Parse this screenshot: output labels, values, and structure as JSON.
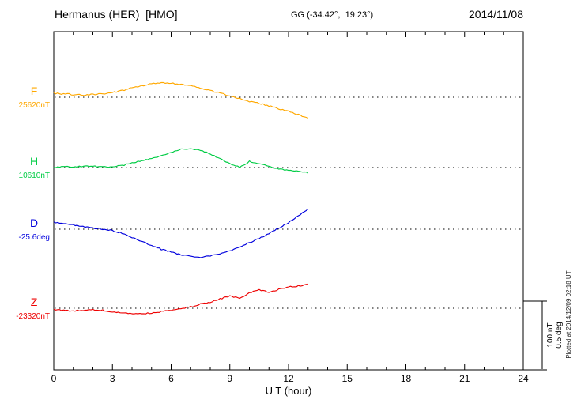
{
  "header": {
    "station": "Hermanus (HER)  [HMO]",
    "coords": "GG (-34.42°,  19.23°)",
    "date": "2014/11/08"
  },
  "scale_bar": {
    "line1": "100 nT",
    "line2": "0.5 deg"
  },
  "plotted_at": "Plotted at 2014/12/09 02:18 UT",
  "chart_data": {
    "type": "line",
    "title": "Hermanus (HER) [HMO] magnetogram 2014/11/08",
    "xlabel": "U T (hour)",
    "ylabel": "",
    "x_range": [
      0,
      24
    ],
    "x_ticks": [
      0,
      3,
      6,
      9,
      12,
      15,
      18,
      21,
      24
    ],
    "x_minor_step": 1,
    "grid": "dotted-baselines",
    "legend_position": "left-of-axis",
    "scale": {
      "nT_per_division": 100,
      "deg_per_division": 0.5
    },
    "x": [
      0,
      0.5,
      1,
      1.5,
      2,
      2.5,
      3,
      3.5,
      4,
      4.5,
      5,
      5.5,
      6,
      6.5,
      7,
      7.5,
      8,
      8.5,
      9,
      9.5,
      10,
      10.5,
      11,
      11.5,
      12,
      12.5,
      13
    ],
    "series": [
      {
        "name": "F",
        "unit": "nT",
        "color": "#FFA800",
        "baseline_label": "25620nT",
        "baseline_value": 25620,
        "values": [
          25626,
          25625,
          25624,
          25623,
          25624,
          25625,
          25627,
          25630,
          25634,
          25637,
          25640,
          25641,
          25641,
          25639,
          25637,
          25634,
          25630,
          25626,
          25622,
          25618,
          25614,
          25611,
          25607,
          25603,
          25599,
          25594,
          25589
        ]
      },
      {
        "name": "H",
        "unit": "nT",
        "color": "#00CC44",
        "baseline_label": "10610nT",
        "baseline_value": 10610,
        "values": [
          10610,
          10611,
          10611,
          10612,
          10612,
          10611,
          10611,
          10613,
          10617,
          10620,
          10624,
          10628,
          10633,
          10637,
          10638,
          10636,
          10630,
          10623,
          10616,
          10611,
          10619,
          10616,
          10612,
          10608,
          10606,
          10604,
          10602
        ]
      },
      {
        "name": "D",
        "unit": "deg",
        "color": "#0000DD",
        "baseline_label": "-25.6deg",
        "baseline_value": -25.6,
        "values": [
          -25.55,
          -25.56,
          -25.57,
          -25.58,
          -25.59,
          -25.6,
          -25.61,
          -25.63,
          -25.66,
          -25.69,
          -25.72,
          -25.75,
          -25.77,
          -25.79,
          -25.8,
          -25.81,
          -25.8,
          -25.78,
          -25.76,
          -25.73,
          -25.7,
          -25.67,
          -25.63,
          -25.59,
          -25.55,
          -25.5,
          -25.45
        ]
      },
      {
        "name": "Z",
        "unit": "nT",
        "color": "#EE0000",
        "baseline_label": "-23320nT",
        "baseline_value": -23320,
        "values": [
          -23322,
          -23323,
          -23324,
          -23323,
          -23322,
          -23323,
          -23325,
          -23327,
          -23328,
          -23328,
          -23327,
          -23325,
          -23323,
          -23320,
          -23318,
          -23314,
          -23311,
          -23306,
          -23302,
          -23305,
          -23297,
          -23293,
          -23296,
          -23292,
          -23288,
          -23287,
          -23284
        ]
      }
    ]
  }
}
